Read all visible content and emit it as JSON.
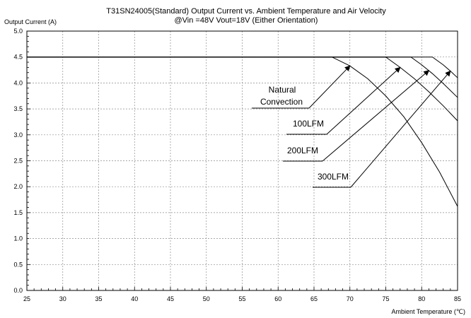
{
  "chart_data": {
    "type": "line",
    "title": "T31SN24005(Standard) Output Current vs. Ambient Temperature and Air Velocity",
    "subtitle": "@Vin =48V Vout=18V (Either Orientation)",
    "ylabel": "Output Current (A)",
    "xlabel": "Ambient Temperature (℃)",
    "xlim": [
      25,
      85
    ],
    "ylim": [
      0,
      5.0
    ],
    "xticks": [
      "25",
      "30",
      "35",
      "40",
      "45",
      "50",
      "55",
      "60",
      "65",
      "70",
      "75",
      "80",
      "85"
    ],
    "yticks": [
      "0.0",
      "0.5",
      "1.0",
      "1.5",
      "2.0",
      "2.5",
      "3.0",
      "3.5",
      "4.0",
      "4.5",
      "5.0"
    ],
    "grid": true,
    "series": [
      {
        "name": "Natural Convection",
        "x": [
          25,
          67.5,
          70,
          72.5,
          75,
          77.5,
          80,
          82.5,
          85
        ],
        "y": [
          4.5,
          4.5,
          4.33,
          4.08,
          3.75,
          3.35,
          2.85,
          2.28,
          1.62
        ]
      },
      {
        "name": "100LFM",
        "x": [
          25,
          75,
          77,
          79,
          81,
          83,
          85
        ],
        "y": [
          4.5,
          4.5,
          4.3,
          4.08,
          3.83,
          3.56,
          3.27
        ]
      },
      {
        "name": "200LFM",
        "x": [
          25,
          78.5,
          80,
          81.5,
          83,
          85
        ],
        "y": [
          4.5,
          4.5,
          4.35,
          4.18,
          3.99,
          3.72
        ]
      },
      {
        "name": "300LFM",
        "x": [
          25,
          81.5,
          83,
          84,
          85
        ],
        "y": [
          4.5,
          4.5,
          4.35,
          4.23,
          4.1
        ]
      }
    ],
    "annotations": [
      {
        "lines": [
          "Natural",
          "Convection"
        ],
        "series": "Natural Convection",
        "arrow_to": [
          70,
          4.33
        ]
      },
      {
        "lines": [
          "100LFM"
        ],
        "series": "100LFM",
        "arrow_to": [
          77,
          4.3
        ]
      },
      {
        "lines": [
          "200LFM"
        ],
        "series": "200LFM",
        "arrow_to": [
          81,
          4.24
        ]
      },
      {
        "lines": [
          "300LFM"
        ],
        "series": "300LFM",
        "arrow_to": [
          84,
          4.23
        ]
      }
    ]
  }
}
